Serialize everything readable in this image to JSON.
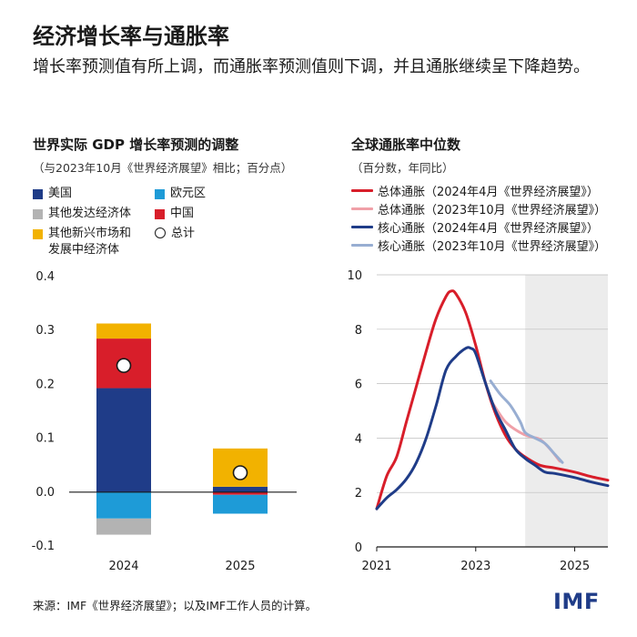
{
  "header": {
    "title": "经济增长率与通胀率",
    "subtitle": "增长率预测值有所上调，而通胀率预测值则下调，并且通胀继续呈下降趋势。"
  },
  "left_panel": {
    "title": "世界实际 GDP 增长率预测的调整",
    "subtitle": "（与2023年10月《世界经济展望》相比；百分点）"
  },
  "right_panel": {
    "title": "全球通胀率中位数",
    "subtitle": "（百分数，年同比）"
  },
  "footer": {
    "source": "来源：IMF《世界经济展望》；以及IMF工作人员的计算。",
    "logo": "IMF"
  },
  "colors": {
    "us": "#1f3c88",
    "euro": "#1e9bd7",
    "other_adv": "#b3b3b3",
    "china": "#d81e2a",
    "other_em": "#f2b200",
    "headline_apr": "#d81e2a",
    "headline_oct": "#f0a0a8",
    "core_apr": "#1f3c88",
    "core_oct": "#98aed2",
    "forecast_shade": "#ececec"
  },
  "chart_data": [
    {
      "type": "bar",
      "stacked": true,
      "title": "世界实际 GDP 增长率预测的调整",
      "subtitle": "（与2023年10月《世界经济展望》相比；百分点）",
      "categories": [
        "2024",
        "2025"
      ],
      "ylim": [
        -0.1,
        0.4
      ],
      "yticks": [
        -0.1,
        0.0,
        0.1,
        0.2,
        0.3,
        0.4
      ],
      "ytick_labels": [
        "-0.1",
        "0.0",
        "0.1",
        "0.2",
        "0.3",
        "0.4"
      ],
      "series": [
        {
          "key": "us",
          "name": "美国",
          "values": [
            0.193,
            0.01
          ]
        },
        {
          "key": "euro",
          "name": "欧元区",
          "values": [
            -0.049,
            -0.035
          ]
        },
        {
          "key": "other_adv",
          "name": "其他发达经济体",
          "values": [
            -0.03,
            0.0
          ]
        },
        {
          "key": "china",
          "name": "中国",
          "values": [
            0.092,
            -0.005
          ]
        },
        {
          "key": "other_em",
          "name": "其他新兴市场和发展中经济体",
          "values": [
            0.028,
            0.071
          ]
        }
      ],
      "total": {
        "name": "总计",
        "values": [
          0.235,
          0.036
        ]
      },
      "legend": {
        "us": "美国",
        "euro": "欧元区",
        "other_adv": "其他发达经济体",
        "china": "中国",
        "other_em_line1": "其他新兴市场和",
        "other_em_line2": "发展中经济体",
        "total": "总计"
      }
    },
    {
      "type": "line",
      "title": "全球通胀率中位数",
      "subtitle": "（百分数，年同比）",
      "xlim": [
        2021,
        2025.67
      ],
      "ylim": [
        0,
        10
      ],
      "xticks": [
        2021,
        2023,
        2025
      ],
      "xtick_labels": [
        "2021",
        "2023",
        "2025"
      ],
      "yticks": [
        0,
        2,
        4,
        6,
        8,
        10
      ],
      "ytick_labels": [
        "0",
        "2",
        "4",
        "6",
        "8",
        "10"
      ],
      "forecast_start": 2024.0,
      "series": [
        {
          "key": "headline_apr",
          "name": "总体通胀（2024年4月《世界经济展望》）",
          "points": [
            [
              2021.0,
              1.4
            ],
            [
              2021.2,
              2.6
            ],
            [
              2021.4,
              3.3
            ],
            [
              2021.6,
              4.6
            ],
            [
              2021.8,
              5.9
            ],
            [
              2022.0,
              7.2
            ],
            [
              2022.2,
              8.4
            ],
            [
              2022.4,
              9.2
            ],
            [
              2022.5,
              9.4
            ],
            [
              2022.6,
              9.3
            ],
            [
              2022.8,
              8.6
            ],
            [
              2023.0,
              7.4
            ],
            [
              2023.2,
              6.0
            ],
            [
              2023.4,
              4.9
            ],
            [
              2023.6,
              4.1
            ],
            [
              2023.8,
              3.6
            ],
            [
              2024.0,
              3.3
            ],
            [
              2024.3,
              3.0
            ],
            [
              2024.6,
              2.9
            ],
            [
              2025.0,
              2.75
            ],
            [
              2025.3,
              2.6
            ],
            [
              2025.67,
              2.45
            ]
          ]
        },
        {
          "key": "headline_oct",
          "name": "总体通胀（2023年10月《世界经济展望》）",
          "points": [
            [
              2023.3,
              5.4
            ],
            [
              2023.6,
              4.6
            ],
            [
              2023.9,
              4.2
            ],
            [
              2024.1,
              4.05
            ],
            [
              2024.3,
              3.95
            ],
            [
              2024.5,
              3.6
            ],
            [
              2024.7,
              3.15
            ]
          ]
        },
        {
          "key": "core_apr",
          "name": "核心通胀（2024年4月《世界经济展望》）",
          "points": [
            [
              2021.0,
              1.4
            ],
            [
              2021.2,
              1.8
            ],
            [
              2021.4,
              2.1
            ],
            [
              2021.6,
              2.5
            ],
            [
              2021.8,
              3.1
            ],
            [
              2022.0,
              4.0
            ],
            [
              2022.2,
              5.2
            ],
            [
              2022.4,
              6.5
            ],
            [
              2022.6,
              7.0
            ],
            [
              2022.8,
              7.3
            ],
            [
              2022.9,
              7.3
            ],
            [
              2023.0,
              7.1
            ],
            [
              2023.2,
              6.0
            ],
            [
              2023.4,
              5.0
            ],
            [
              2023.6,
              4.3
            ],
            [
              2023.8,
              3.6
            ],
            [
              2024.0,
              3.25
            ],
            [
              2024.2,
              3.0
            ],
            [
              2024.4,
              2.75
            ],
            [
              2024.6,
              2.7
            ],
            [
              2025.0,
              2.55
            ],
            [
              2025.3,
              2.4
            ],
            [
              2025.67,
              2.25
            ]
          ]
        },
        {
          "key": "core_oct",
          "name": "核心通胀（2023年10月《世界经济展望》）",
          "points": [
            [
              2023.3,
              6.1
            ],
            [
              2023.5,
              5.6
            ],
            [
              2023.7,
              5.2
            ],
            [
              2023.9,
              4.6
            ],
            [
              2024.0,
              4.2
            ],
            [
              2024.2,
              4.0
            ],
            [
              2024.4,
              3.8
            ],
            [
              2024.6,
              3.4
            ],
            [
              2024.75,
              3.1
            ]
          ]
        }
      ],
      "legend": {
        "headline_apr": "总体通胀（2024年4月《世界经济展望》）",
        "headline_oct": "总体通胀（2023年10月《世界经济展望》）",
        "core_apr": "核心通胀（2024年4月《世界经济展望》）",
        "core_oct": "核心通胀（2023年10月《世界经济展望》）"
      }
    }
  ]
}
